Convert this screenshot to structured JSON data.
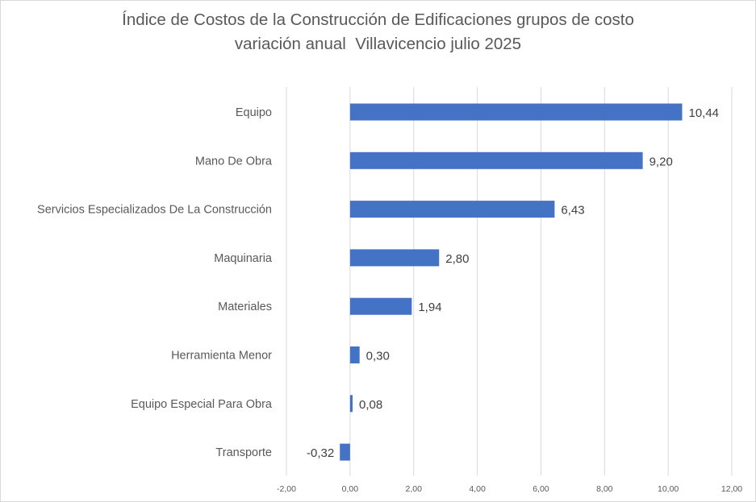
{
  "chart_data": {
    "type": "bar",
    "orientation": "horizontal",
    "title_lines": [
      "Índice de Costos de la Construcción de Edificaciones grupos de costo",
      "variación anual  Villavicencio julio 2025"
    ],
    "categories": [
      "Equipo",
      "Mano De Obra",
      "Servicios Especializados De La Construcción",
      "Maquinaria",
      "Materiales",
      "Herramienta Menor",
      "Equipo Especial Para Obra",
      "Transporte"
    ],
    "values": [
      10.44,
      9.2,
      6.43,
      2.8,
      1.94,
      0.3,
      0.08,
      -0.32
    ],
    "value_labels": [
      "10,44",
      "9,20",
      "6,43",
      "2,80",
      "1,94",
      "0,30",
      "0,08",
      "-0,32"
    ],
    "xlim": [
      -2,
      12
    ],
    "xticks": [
      -2,
      0,
      2,
      4,
      6,
      8,
      10,
      12
    ],
    "xtick_labels": [
      "-2,00",
      "0,00",
      "2,00",
      "4,00",
      "6,00",
      "8,00",
      "10,00",
      "12,00"
    ],
    "grid": "vertical",
    "legend": "none",
    "colors": {
      "bar": "#4472c4",
      "grid": "#d9d9d9",
      "text": "#595959",
      "value_text": "#404040"
    }
  }
}
